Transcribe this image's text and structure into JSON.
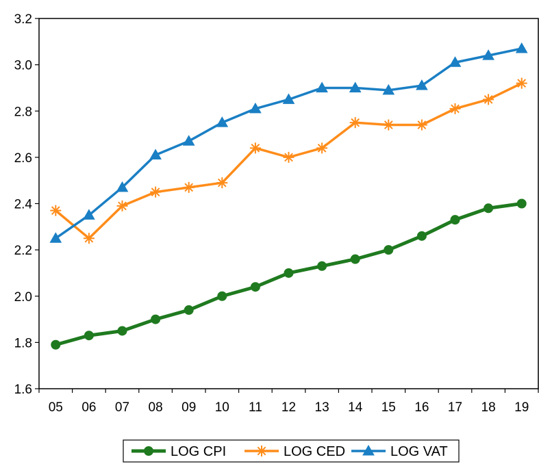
{
  "chart_data": {
    "type": "line",
    "title": "",
    "xlabel": "",
    "ylabel": "",
    "categories": [
      "05",
      "06",
      "07",
      "08",
      "09",
      "10",
      "11",
      "12",
      "13",
      "14",
      "15",
      "16",
      "17",
      "18",
      "19"
    ],
    "ylim": [
      1.6,
      3.2
    ],
    "yticks": [
      "1.6",
      "1.8",
      "2.0",
      "2.2",
      "2.4",
      "2.6",
      "2.8",
      "3.0",
      "3.2"
    ],
    "grid": false,
    "legend_position": "bottom",
    "series": [
      {
        "name": "LOG CPI",
        "color": "#1f7a1f",
        "marker": "circle",
        "values": [
          1.79,
          1.83,
          1.85,
          1.9,
          1.94,
          2.0,
          2.04,
          2.1,
          2.13,
          2.16,
          2.2,
          2.26,
          2.33,
          2.38,
          2.4
        ]
      },
      {
        "name": "LOG CED",
        "color": "#ff8c1a",
        "marker": "asterisk",
        "values": [
          2.37,
          2.25,
          2.39,
          2.45,
          2.47,
          2.49,
          2.64,
          2.6,
          2.64,
          2.75,
          2.74,
          2.74,
          2.81,
          2.85,
          2.92
        ]
      },
      {
        "name": "LOG VAT",
        "color": "#1a7fc4",
        "marker": "triangle",
        "values": [
          2.25,
          2.35,
          2.47,
          2.61,
          2.67,
          2.75,
          2.81,
          2.85,
          2.9,
          2.9,
          2.89,
          2.91,
          3.01,
          3.04,
          3.07
        ]
      }
    ]
  }
}
